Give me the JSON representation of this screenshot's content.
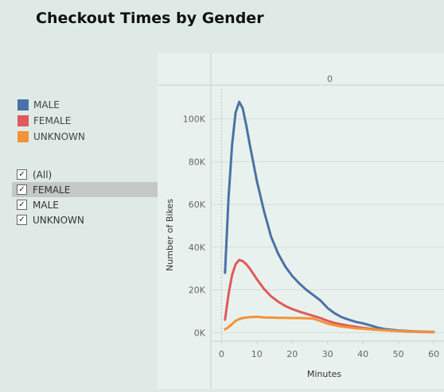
{
  "title": "Checkout Times by Gender",
  "colors": {
    "male": "#4a72a6",
    "female": "#df5a5a",
    "unknown": "#f29337",
    "grid": "#c7d1cd",
    "axis_text": "#666666"
  },
  "legend": [
    {
      "label": "MALE",
      "color": "#4a72a6"
    },
    {
      "label": "FEMALE",
      "color": "#df5a5a"
    },
    {
      "label": "UNKNOWN",
      "color": "#f29337"
    }
  ],
  "filter": {
    "items": [
      {
        "label": "(All)",
        "checked": true,
        "selected": false
      },
      {
        "label": "FEMALE",
        "checked": true,
        "selected": true
      },
      {
        "label": "MALE",
        "checked": true,
        "selected": false
      },
      {
        "label": "UNKNOWN",
        "checked": true,
        "selected": false
      }
    ]
  },
  "chart_data": {
    "type": "line",
    "header": "0",
    "xlabel": "Minutes",
    "ylabel": "Number of Bikes",
    "xlim": [
      -3,
      62
    ],
    "ylim": [
      -4000,
      114000
    ],
    "x_ticks": [
      0,
      10,
      20,
      30,
      40,
      50,
      60
    ],
    "y_ticks": [
      0,
      20000,
      40000,
      60000,
      80000,
      100000
    ],
    "y_tick_labels": [
      "0K",
      "20K",
      "40K",
      "60K",
      "80K",
      "100K"
    ],
    "series": [
      {
        "name": "MALE",
        "color": "#4a72a6",
        "points": [
          [
            1,
            28000
          ],
          [
            2,
            63000
          ],
          [
            3,
            88000
          ],
          [
            4,
            103000
          ],
          [
            5,
            108000
          ],
          [
            6,
            105000
          ],
          [
            7,
            97000
          ],
          [
            8,
            88000
          ],
          [
            10,
            71000
          ],
          [
            12,
            57000
          ],
          [
            14,
            45000
          ],
          [
            16,
            37000
          ],
          [
            18,
            31000
          ],
          [
            20,
            26500
          ],
          [
            22,
            23000
          ],
          [
            24,
            20000
          ],
          [
            26,
            17500
          ],
          [
            28,
            15000
          ],
          [
            30,
            11500
          ],
          [
            32,
            9000
          ],
          [
            34,
            7200
          ],
          [
            36,
            6000
          ],
          [
            38,
            5000
          ],
          [
            40,
            4300
          ],
          [
            42,
            3400
          ],
          [
            44,
            2400
          ],
          [
            46,
            1700
          ],
          [
            48,
            1300
          ],
          [
            50,
            1000
          ],
          [
            52,
            800
          ],
          [
            54,
            600
          ],
          [
            56,
            450
          ],
          [
            58,
            350
          ],
          [
            60,
            300
          ]
        ]
      },
      {
        "name": "FEMALE",
        "color": "#df5a5a",
        "points": [
          [
            1,
            6000
          ],
          [
            2,
            18000
          ],
          [
            3,
            27000
          ],
          [
            4,
            32000
          ],
          [
            5,
            34000
          ],
          [
            6,
            33500
          ],
          [
            7,
            32000
          ],
          [
            8,
            30000
          ],
          [
            10,
            25000
          ],
          [
            12,
            20500
          ],
          [
            14,
            17000
          ],
          [
            16,
            14500
          ],
          [
            18,
            12500
          ],
          [
            20,
            11000
          ],
          [
            22,
            9800
          ],
          [
            24,
            8800
          ],
          [
            26,
            7800
          ],
          [
            28,
            6800
          ],
          [
            30,
            5500
          ],
          [
            32,
            4500
          ],
          [
            34,
            3800
          ],
          [
            36,
            3200
          ],
          [
            38,
            2700
          ],
          [
            40,
            2200
          ],
          [
            42,
            1800
          ],
          [
            44,
            1400
          ],
          [
            46,
            1100
          ],
          [
            48,
            900
          ],
          [
            50,
            700
          ],
          [
            52,
            550
          ],
          [
            54,
            420
          ],
          [
            56,
            330
          ],
          [
            58,
            250
          ],
          [
            60,
            200
          ]
        ]
      },
      {
        "name": "UNKNOWN",
        "color": "#f29337",
        "points": [
          [
            1,
            1500
          ],
          [
            2,
            2500
          ],
          [
            3,
            4000
          ],
          [
            4,
            5500
          ],
          [
            5,
            6300
          ],
          [
            6,
            6800
          ],
          [
            7,
            7000
          ],
          [
            8,
            7200
          ],
          [
            10,
            7400
          ],
          [
            12,
            7100
          ],
          [
            14,
            7000
          ],
          [
            16,
            6900
          ],
          [
            18,
            6900
          ],
          [
            20,
            6800
          ],
          [
            22,
            6800
          ],
          [
            24,
            6700
          ],
          [
            26,
            6500
          ],
          [
            28,
            5400
          ],
          [
            30,
            4200
          ],
          [
            32,
            3400
          ],
          [
            34,
            2800
          ],
          [
            36,
            2400
          ],
          [
            38,
            2000
          ],
          [
            40,
            1800
          ],
          [
            42,
            1500
          ],
          [
            44,
            1300
          ],
          [
            46,
            1100
          ],
          [
            48,
            900
          ],
          [
            50,
            750
          ],
          [
            52,
            600
          ],
          [
            54,
            500
          ],
          [
            56,
            400
          ],
          [
            58,
            350
          ],
          [
            60,
            300
          ]
        ]
      }
    ]
  }
}
